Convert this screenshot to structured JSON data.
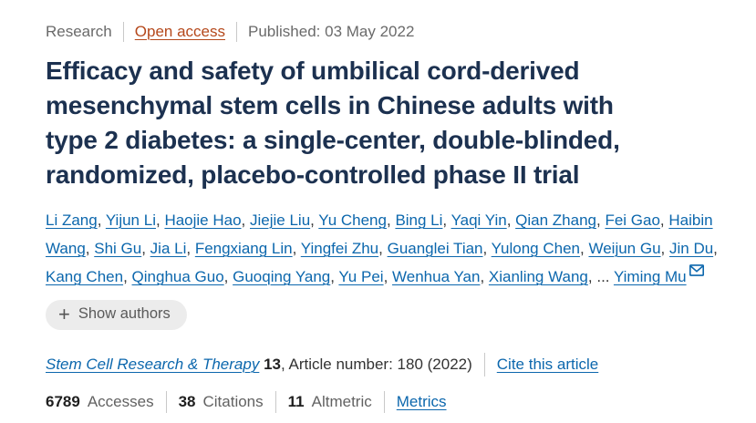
{
  "colors": {
    "title_navy": "#1c3150",
    "link_blue": "#0c67ad",
    "open_access_orange": "#b5481b",
    "gray_text": "#6a6a6a",
    "button_bg": "#ececec"
  },
  "eyebrow": {
    "category": "Research",
    "open_access_label": "Open access",
    "published_label": "Published: 03 May 2022"
  },
  "title": {
    "full": "Efficacy and safety of umbilical cord-derived mesenchymal stem cells in Chinese adults with type 2 diabetes: a single-center, double-blinded, randomized, placebo-controlled phase II trial",
    "lines": [
      "Efficacy and safety of umbilical cord-derived",
      "mesenchymal stem cells in Chinese adults with",
      "type 2 diabetes: a single-center, double-blinded,",
      "randomized, placebo-controlled phase II trial"
    ]
  },
  "authors": {
    "names": [
      "Li Zang",
      "Yijun Li",
      "Haojie Hao",
      "Jiejie Liu",
      "Yu Cheng",
      "Bing Li",
      "Yaqi Yin",
      "Qian Zhang",
      "Fei Gao",
      "Haibin Wang",
      "Shi Gu",
      "Jia Li",
      "Fengxiang Lin",
      "Yingfei Zhu",
      "Guanglei Tian",
      "Yulong Chen",
      "Weijun Gu",
      "Jin Du",
      "Kang Chen",
      "Qinghua Guo",
      "Guoqing Yang",
      "Yu Pei",
      "Wenhua Yan",
      "Xianling Wang"
    ],
    "separator": ", ",
    "ellipsis": "... ",
    "last_author": "Yiming Mu",
    "corresponding_icon": "envelope-icon",
    "plus_icon": "+",
    "show_authors_label": "Show authors"
  },
  "journal": {
    "name": "Stem Cell Research & Therapy",
    "volume": "13",
    "article_info": ", Article number: 180 (2022)",
    "cite_link_label": "Cite this article"
  },
  "metrics": {
    "items": [
      {
        "value": "6789",
        "label": "Accesses"
      },
      {
        "value": "38",
        "label": "Citations"
      },
      {
        "value": "11",
        "label": "Altmetric"
      }
    ],
    "metrics_link_label": "Metrics"
  }
}
